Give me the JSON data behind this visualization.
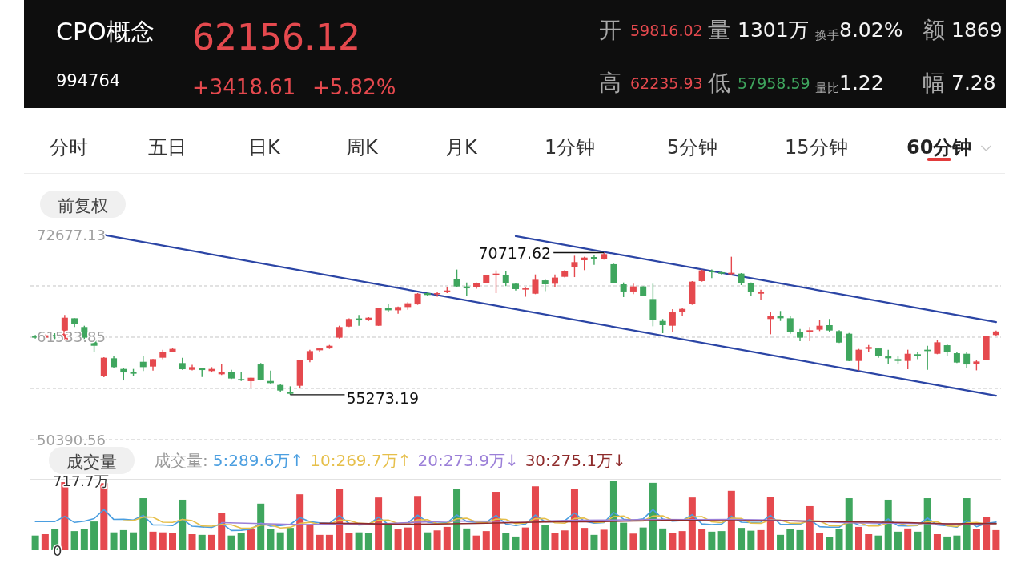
{
  "chart_data": [
    {
      "type": "candlestick",
      "title": "CPO概念",
      "subtitle": "994764",
      "categories": [
        null,
        null,
        null,
        null,
        null,
        null,
        null,
        null,
        null,
        null,
        null,
        null,
        null,
        null,
        null,
        null,
        null,
        null,
        null,
        null,
        null,
        null,
        null,
        null,
        null,
        null,
        null,
        null,
        null,
        null,
        null,
        null,
        null,
        null,
        null,
        null,
        null,
        null,
        null,
        null,
        null,
        null,
        null,
        null,
        null,
        null,
        null,
        null,
        null,
        null,
        null,
        null,
        null,
        null,
        null,
        null,
        null,
        null,
        null,
        null,
        null,
        null,
        null,
        null,
        null,
        null,
        null,
        null,
        null,
        null,
        null,
        null,
        null,
        null,
        null,
        null,
        null,
        null,
        null,
        null,
        null,
        null,
        null,
        null,
        null,
        null,
        null,
        null,
        null,
        null,
        null,
        null,
        null,
        null,
        null,
        null,
        null,
        null,
        null
      ],
      "ohlc": [
        [
          61650,
          61770,
          61390,
          61480
        ],
        [
          61480,
          61820,
          61330,
          61740
        ],
        [
          61770,
          61970,
          61330,
          61620
        ],
        [
          61190,
          63940,
          61180,
          63650
        ],
        [
          63590,
          63600,
          62640,
          62930
        ],
        [
          62640,
          62780,
          61100,
          61480
        ],
        [
          61190,
          61200,
          59880,
          60600
        ],
        [
          57270,
          59360,
          57180,
          59300
        ],
        [
          59240,
          59440,
          58200,
          58280
        ],
        [
          58080,
          58140,
          56830,
          57700
        ],
        [
          57760,
          58080,
          57330,
          57560
        ],
        [
          58860,
          59530,
          57850,
          58280
        ],
        [
          58340,
          59160,
          57910,
          59150
        ],
        [
          59300,
          60170,
          59150,
          59880
        ],
        [
          59940,
          60370,
          59880,
          60260
        ],
        [
          58720,
          59300,
          57990,
          58050
        ],
        [
          57990,
          58520,
          57930,
          58280
        ],
        [
          58140,
          58200,
          57210,
          57960
        ],
        [
          57850,
          58280,
          57700,
          58080
        ],
        [
          57500,
          58630,
          57410,
          57790
        ],
        [
          57790,
          57990,
          56980,
          57040
        ],
        [
          56980,
          57790,
          56770,
          56830
        ],
        [
          56750,
          57130,
          56050,
          57120
        ],
        [
          58570,
          58720,
          56830,
          56920
        ],
        [
          56770,
          57910,
          56480,
          56540
        ],
        [
          56340,
          56460,
          55610,
          55730
        ],
        [
          55580,
          56190,
          55273.19,
          55380
        ],
        [
          56250,
          59070,
          55960,
          59010
        ],
        [
          59010,
          60170,
          58810,
          60020
        ],
        [
          60110,
          60400,
          59940,
          60310
        ],
        [
          60310,
          60690,
          60260,
          60600
        ],
        [
          61480,
          62780,
          61390,
          62640
        ],
        [
          62690,
          63590,
          62640,
          63510
        ],
        [
          63570,
          63940,
          62780,
          63360
        ],
        [
          63360,
          63710,
          63300,
          63650
        ],
        [
          62780,
          64750,
          62770,
          64670
        ],
        [
          64750,
          65100,
          64230,
          64460
        ],
        [
          64460,
          64870,
          64090,
          64810
        ],
        [
          64810,
          65340,
          64520,
          65220
        ],
        [
          65100,
          66320,
          65050,
          66260
        ],
        [
          66320,
          66410,
          65970,
          66120
        ],
        [
          66210,
          66500,
          65920,
          66320
        ],
        [
          66410,
          66990,
          66320,
          66610
        ],
        [
          67860,
          68880,
          66990,
          67050
        ],
        [
          67050,
          67480,
          66060,
          66840
        ],
        [
          66990,
          67480,
          66790,
          67370
        ],
        [
          67420,
          68300,
          67370,
          68240
        ],
        [
          68300,
          68790,
          66320,
          68440
        ],
        [
          68300,
          68730,
          67080,
          67420
        ],
        [
          67340,
          67420,
          66610,
          66760
        ],
        [
          66700,
          66900,
          65920,
          66840
        ],
        [
          66260,
          68350,
          66210,
          67770
        ],
        [
          67710,
          67770,
          66550,
          67280
        ],
        [
          67340,
          68350,
          66930,
          68010
        ],
        [
          68090,
          68820,
          68010,
          68730
        ],
        [
          69170,
          70380,
          68060,
          69690
        ],
        [
          69890,
          70270,
          68820,
          70180
        ],
        [
          70240,
          70470,
          69400,
          70040
        ],
        [
          69980,
          70717.62,
          69950,
          70560
        ],
        [
          69460,
          69510,
          67370,
          67420
        ],
        [
          67280,
          67480,
          65890,
          66500
        ],
        [
          66500,
          67340,
          66210,
          67050
        ],
        [
          67050,
          67060,
          66030,
          66060
        ],
        [
          65680,
          67340,
          62720,
          63450
        ],
        [
          63300,
          63510,
          61970,
          62840
        ],
        [
          62780,
          64580,
          62110,
          64230
        ],
        [
          64320,
          64730,
          63800,
          64610
        ],
        [
          65160,
          67630,
          65050,
          67570
        ],
        [
          67630,
          68880,
          67570,
          68790
        ],
        [
          68730,
          68880,
          67950,
          68590
        ],
        [
          68590,
          68730,
          68300,
          68440
        ],
        [
          68380,
          70270,
          68300,
          68530
        ],
        [
          68440,
          68500,
          67190,
          67420
        ],
        [
          67420,
          67480,
          65970,
          66410
        ],
        [
          66260,
          66700,
          65540,
          66410
        ],
        [
          63510,
          64230,
          61850,
          63800
        ],
        [
          63800,
          64380,
          63300,
          63590
        ],
        [
          63590,
          63880,
          61910,
          62140
        ],
        [
          62060,
          62430,
          61100,
          61480
        ],
        [
          62140,
          62640,
          61100,
          62290
        ],
        [
          62350,
          63420,
          62200,
          62780
        ],
        [
          62840,
          63510,
          62110,
          62260
        ],
        [
          62200,
          62290,
          60900,
          60950
        ],
        [
          61910,
          62000,
          58920,
          58950
        ],
        [
          58950,
          60260,
          57910,
          60170
        ],
        [
          60260,
          60690,
          59880,
          60460
        ],
        [
          60310,
          60370,
          59300,
          59530
        ],
        [
          59440,
          60170,
          58660,
          59240
        ],
        [
          59150,
          59530,
          58660,
          58950
        ],
        [
          58950,
          60170,
          58050,
          59730
        ],
        [
          59680,
          59880,
          59150,
          59530
        ],
        [
          60170,
          60600,
          57990,
          60020
        ],
        [
          59730,
          61190,
          59680,
          60980
        ],
        [
          60660,
          60750,
          59530,
          59940
        ],
        [
          59790,
          59880,
          58720,
          58780
        ],
        [
          59730,
          59970,
          58200,
          58570
        ],
        [
          58660,
          59010,
          57930,
          58890
        ],
        [
          59070,
          61680,
          59010,
          61620
        ],
        [
          61770,
          62260,
          61620,
          62156.12
        ]
      ],
      "colors": [
        "#3fa65e",
        "#e5494e",
        "#3fa65e",
        "#e5494e",
        "#3fa65e",
        "#3fa65e",
        "#3fa65e",
        "#e5494e",
        "#3fa65e",
        "#3fa65e",
        "#3fa65e",
        "#3fa65e",
        "#e5494e",
        "#e5494e",
        "#e5494e",
        "#3fa65e",
        "#e5494e",
        "#3fa65e",
        "#e5494e",
        "#e5494e",
        "#3fa65e",
        "#3fa65e",
        "#e5494e",
        "#3fa65e",
        "#3fa65e",
        "#3fa65e",
        "#3fa65e",
        "#e5494e",
        "#e5494e",
        "#e5494e",
        "#e5494e",
        "#e5494e",
        "#e5494e",
        "#3fa65e",
        "#e5494e",
        "#e5494e",
        "#3fa65e",
        "#e5494e",
        "#e5494e",
        "#e5494e",
        "#3fa65e",
        "#e5494e",
        "#e5494e",
        "#3fa65e",
        "#3fa65e",
        "#e5494e",
        "#e5494e",
        "#e5494e",
        "#3fa65e",
        "#3fa65e",
        "#e5494e",
        "#e5494e",
        "#3fa65e",
        "#e5494e",
        "#e5494e",
        "#e5494e",
        "#e5494e",
        "#3fa65e",
        "#e5494e",
        "#3fa65e",
        "#3fa65e",
        "#e5494e",
        "#3fa65e",
        "#3fa65e",
        "#3fa65e",
        "#e5494e",
        "#e5494e",
        "#e5494e",
        "#e5494e",
        "#3fa65e",
        "#3fa65e",
        "#e5494e",
        "#3fa65e",
        "#3fa65e",
        "#e5494e",
        "#e5494e",
        "#3fa65e",
        "#3fa65e",
        "#3fa65e",
        "#e5494e",
        "#e5494e",
        "#3fa65e",
        "#3fa65e",
        "#3fa65e",
        "#e5494e",
        "#e5494e",
        "#3fa65e",
        "#3fa65e",
        "#3fa65e",
        "#e5494e",
        "#3fa65e",
        "#3fa65e",
        "#e5494e",
        "#3fa65e",
        "#3fa65e",
        "#3fa65e",
        "#e5494e",
        "#e5494e",
        "#e5494e"
      ],
      "series": [
        {
          "type": "line",
          "color": "#2b45a5",
          "values": [
            null,
            null,
            null,
            null,
            null,
            null,
            null,
            72640,
            null,
            null,
            null,
            null,
            null,
            null,
            null,
            null,
            null,
            null,
            null,
            null,
            null,
            null,
            null,
            null,
            null,
            null,
            null,
            null,
            null,
            null,
            null,
            null,
            null,
            null,
            null,
            null,
            null,
            null,
            null,
            null,
            null,
            null,
            null,
            null,
            null,
            null,
            null,
            null,
            null,
            null,
            null,
            null,
            null,
            null,
            null,
            null,
            null,
            null,
            null,
            null,
            null,
            null,
            null,
            null,
            null,
            null,
            null,
            null,
            null,
            null,
            null,
            null,
            null,
            null,
            null,
            null,
            null,
            null,
            null,
            null,
            null,
            null,
            null,
            null,
            null,
            null,
            null,
            null,
            null,
            null,
            null,
            null,
            null,
            null,
            null,
            null,
            null,
            null,
            55170
          ]
        },
        {
          "type": "line",
          "color": "#2b45a5",
          "values": [
            null,
            null,
            null,
            null,
            null,
            null,
            null,
            null,
            null,
            null,
            null,
            null,
            null,
            null,
            null,
            null,
            null,
            null,
            null,
            null,
            null,
            null,
            null,
            null,
            null,
            null,
            null,
            null,
            null,
            null,
            null,
            null,
            null,
            null,
            null,
            null,
            null,
            null,
            null,
            null,
            null,
            null,
            null,
            null,
            null,
            null,
            null,
            null,
            null,
            72520,
            null,
            null,
            null,
            null,
            null,
            null,
            null,
            null,
            null,
            null,
            null,
            null,
            null,
            null,
            null,
            null,
            null,
            null,
            null,
            null,
            null,
            null,
            null,
            null,
            null,
            null,
            null,
            null,
            null,
            null,
            null,
            null,
            null,
            null,
            null,
            null,
            null,
            null,
            null,
            null,
            null,
            null,
            null,
            null,
            null,
            null,
            null,
            null,
            63180
          ]
        }
      ],
      "ylim": [
        50390.56,
        72677.13
      ],
      "yticks": [
        72677.13,
        {
          "value": 67105.49,
          "label": null
        },
        61533.85,
        {
          "value": 55962.2,
          "label": null
        },
        50390.56
      ],
      "grid": "y",
      "annotations": [
        "62156.12",
        "+3418.61",
        "+5.82%",
        "开",
        "59816.02",
        "量",
        "1301万",
        "换手",
        "8.02%",
        "额",
        "1869",
        "高",
        "62235.93",
        "低",
        "57958.59",
        "量比",
        "1.22",
        "幅",
        "7.28",
        "分时",
        "五日",
        "日K",
        "周K",
        "月K",
        "1分钟",
        "5分钟",
        "15分钟",
        "60分钟",
        "前复权",
        "70717.62",
        "55273.19"
      ]
    },
    {
      "type": "bar",
      "categories": [
        null,
        null,
        null,
        null,
        null,
        null,
        null,
        null,
        null,
        null,
        null,
        null,
        null,
        null,
        null,
        null,
        null,
        null,
        null,
        null,
        null,
        null,
        null,
        null,
        null,
        null,
        null,
        null,
        null,
        null,
        null,
        null,
        null,
        null,
        null,
        null,
        null,
        null,
        null,
        null,
        null,
        null,
        null,
        null,
        null,
        null,
        null,
        null,
        null,
        null,
        null,
        null,
        null,
        null,
        null,
        null,
        null,
        null,
        null,
        null,
        null,
        null,
        null,
        null,
        null,
        null,
        null,
        null,
        null,
        null,
        null,
        null,
        null,
        null,
        null,
        null,
        null,
        null,
        null,
        null,
        null,
        null,
        null,
        null,
        null,
        null,
        null,
        null,
        null,
        null,
        null,
        null,
        null,
        null,
        null,
        null,
        null,
        null,
        null
      ],
      "series": [
        {
          "values": [
            151,
            165,
            217,
            701,
            197,
            217,
            296,
            691,
            184,
            207,
            184,
            536,
            191,
            184,
            174,
            520,
            165,
            158,
            158,
            382,
            151,
            174,
            217,
            480,
            217,
            184,
            230,
            576,
            263,
            158,
            158,
            628,
            174,
            184,
            174,
            543,
            257,
            214,
            234,
            559,
            184,
            204,
            240,
            628,
            224,
            151,
            197,
            602,
            174,
            141,
            234,
            658,
            257,
            174,
            204,
            628,
            230,
            158,
            211,
            717.7,
            283,
            171,
            234,
            694,
            224,
            174,
            197,
            543,
            217,
            191,
            197,
            612,
            230,
            201,
            207,
            546,
            158,
            217,
            207,
            454,
            174,
            132,
            217,
            536,
            240,
            165,
            151,
            520,
            191,
            224,
            191,
            536,
            165,
            141,
            151,
            536,
            217,
            339,
            207
          ],
          "colors": [
            "#3fa65e",
            "#e5494e",
            "#3fa65e",
            "#e5494e",
            "#3fa65e",
            "#3fa65e",
            "#3fa65e",
            "#e5494e",
            "#3fa65e",
            "#3fa65e",
            "#3fa65e",
            "#3fa65e",
            "#e5494e",
            "#e5494e",
            "#e5494e",
            "#3fa65e",
            "#e5494e",
            "#3fa65e",
            "#e5494e",
            "#e5494e",
            "#3fa65e",
            "#3fa65e",
            "#e5494e",
            "#3fa65e",
            "#3fa65e",
            "#3fa65e",
            "#3fa65e",
            "#e5494e",
            "#e5494e",
            "#e5494e",
            "#e5494e",
            "#e5494e",
            "#e5494e",
            "#3fa65e",
            "#3fa65e",
            "#e5494e",
            "#3fa65e",
            "#e5494e",
            "#e5494e",
            "#e5494e",
            "#3fa65e",
            "#e5494e",
            "#e5494e",
            "#3fa65e",
            "#3fa65e",
            "#e5494e",
            "#e5494e",
            "#e5494e",
            "#3fa65e",
            "#3fa65e",
            "#e5494e",
            "#e5494e",
            "#3fa65e",
            "#e5494e",
            "#e5494e",
            "#e5494e",
            "#e5494e",
            "#3fa65e",
            "#e5494e",
            "#3fa65e",
            "#3fa65e",
            "#e5494e",
            "#3fa65e",
            "#3fa65e",
            "#3fa65e",
            "#e5494e",
            "#e5494e",
            "#e5494e",
            "#e5494e",
            "#3fa65e",
            "#3fa65e",
            "#e5494e",
            "#3fa65e",
            "#3fa65e",
            "#e5494e",
            "#e5494e",
            "#3fa65e",
            "#3fa65e",
            "#3fa65e",
            "#e5494e",
            "#e5494e",
            "#3fa65e",
            "#3fa65e",
            "#3fa65e",
            "#e5494e",
            "#e5494e",
            "#3fa65e",
            "#3fa65e",
            "#3fa65e",
            "#e5494e",
            "#3fa65e",
            "#3fa65e",
            "#e5494e",
            "#3fa65e",
            "#3fa65e",
            "#3fa65e",
            "#e5494e",
            "#e5494e",
            "#e5494e"
          ]
        },
        {
          "type": "line",
          "name": "5:289.6万↑",
          "color": "#4a9ee0",
          "values": [
            296,
            296,
            296,
            349,
            286,
            299,
            326,
            420,
            317,
            319,
            312,
            360,
            260,
            260,
            254,
            321,
            247,
            240,
            235,
            277,
            203,
            205,
            216,
            281,
            248,
            254,
            266,
            337,
            294,
            282,
            277,
            357,
            276,
            260,
            264,
            341,
            266,
            274,
            284,
            361,
            290,
            279,
            284,
            363,
            296,
            289,
            288,
            360,
            270,
            253,
            270,
            362,
            293,
            293,
            305,
            384,
            299,
            279,
            286,
            389,
            320,
            308,
            323,
            420,
            321,
            299,
            305,
            366,
            271,
            264,
            269,
            352,
            289,
            286,
            289,
            359,
            268,
            266,
            267,
            316,
            242,
            237,
            237,
            303,
            260,
            258,
            262,
            322,
            253,
            250,
            255,
            332,
            261,
            251,
            237,
            306,
            242,
            277,
            289.6
          ]
        },
        {
          "type": "line",
          "name": "10:269.7万↑",
          "color": "#e6bf4a",
          "values": [
            null,
            null,
            null,
            null,
            null,
            null,
            null,
            null,
            null,
            303,
            306,
            343,
            340,
            289,
            287,
            317,
            304,
            250,
            248,
            266,
            262,
            226,
            228,
            258,
            263,
            229,
            236,
            277,
            288,
            265,
            266,
            312,
            307,
            277,
            273,
            309,
            312,
            275,
            272,
            313,
            316,
            273,
            279,
            324,
            329,
            290,
            284,
            322,
            317,
            275,
            280,
            325,
            327,
            282,
            279,
            327,
            331,
            286,
            290,
            347,
            352,
            304,
            301,
            353,
            355,
            310,
            307,
            345,
            346,
            293,
            284,
            329,
            328,
            279,
            277,
            314,
            310,
            278,
            277,
            303,
            301,
            253,
            252,
            285,
            288,
            250,
            250,
            280,
            278,
            255,
            257,
            297,
            292,
            252,
            244,
            281,
            287,
            269,
            269.7
          ]
        },
        {
          "type": "line",
          "name": "20:273.9万↓",
          "color": "#9b7fd8",
          "values": [
            null,
            null,
            null,
            null,
            null,
            null,
            null,
            null,
            null,
            null,
            null,
            null,
            null,
            null,
            null,
            null,
            null,
            null,
            null,
            285,
            null,
            null,
            null,
            274,
            null,
            null,
            null,
            264,
            null,
            null,
            null,
            269,
            null,
            null,
            null,
            269,
            null,
            null,
            null,
            289,
            null,
            null,
            null,
            301,
            null,
            null,
            null,
            299,
            null,
            null,
            null,
            299,
            null,
            null,
            null,
            309,
            null,
            null,
            null,
            311,
            null,
            null,
            null,
            318,
            null,
            null,
            null,
            316,
            null,
            null,
            null,
            317,
            null,
            null,
            null,
            312,
            null,
            null,
            null,
            298,
            null,
            null,
            null,
            282,
            null,
            null,
            null,
            279,
            null,
            null,
            null,
            275,
            null,
            null,
            null,
            266,
            null,
            null,
            273.9
          ]
        },
        {
          "type": "line",
          "name": "30:275.1万↓",
          "color": "#8e2b2b",
          "values": [
            null,
            null,
            null,
            null,
            null,
            null,
            null,
            null,
            null,
            null,
            null,
            null,
            null,
            null,
            null,
            null,
            null,
            null,
            null,
            null,
            null,
            null,
            null,
            null,
            null,
            null,
            null,
            null,
            null,
            278,
            null,
            null,
            null,
            275,
            null,
            null,
            null,
            267,
            null,
            null,
            null,
            270,
            null,
            null,
            null,
            276,
            null,
            null,
            null,
            284,
            null,
            null,
            null,
            294,
            null,
            null,
            null,
            294,
            null,
            null,
            null,
            301,
            null,
            null,
            null,
            309,
            null,
            null,
            null,
            305,
            null,
            null,
            null,
            305,
            null,
            null,
            null,
            303,
            null,
            null,
            null,
            295,
            null,
            null,
            null,
            291,
            null,
            null,
            null,
            284,
            null,
            null,
            null,
            272,
            null,
            null,
            null,
            null,
            275.1
          ]
        }
      ],
      "ylim": [
        0,
        717.7
      ],
      "yticks": [
        {
          "value": 717.7,
          "label": "717.7万"
        },
        0
      ],
      "legend": "top",
      "legend_title": "成交量:",
      "annotations": [
        "成交量"
      ]
    }
  ]
}
